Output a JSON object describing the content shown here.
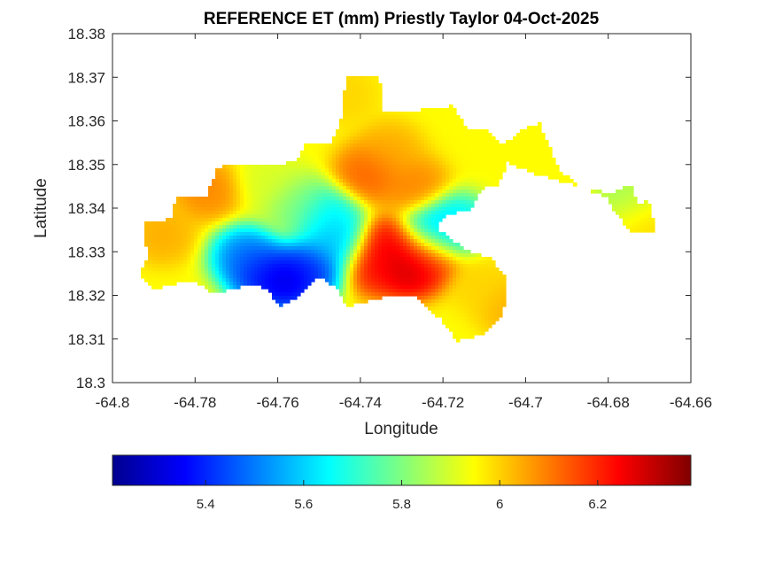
{
  "figure": {
    "title": "REFERENCE ET (mm) Priestly Taylor 04-Oct-2025",
    "xlabel": "Longitude",
    "ylabel": "Latitude"
  },
  "chart_data": {
    "type": "heatmap",
    "colormap": "jet",
    "xlim": [
      -64.8,
      -64.66
    ],
    "ylim": [
      18.3,
      18.38
    ],
    "x_ticks": [
      -64.8,
      -64.78,
      -64.76,
      -64.74,
      -64.72,
      -64.7,
      -64.68,
      -64.66
    ],
    "x_tick_labels": [
      "-64.8",
      "-64.78",
      "-64.76",
      "-64.74",
      "-64.72",
      "-64.7",
      "-64.68",
      "-64.66"
    ],
    "y_ticks": [
      18.3,
      18.31,
      18.32,
      18.33,
      18.34,
      18.35,
      18.36,
      18.37,
      18.38
    ],
    "y_tick_labels": [
      "18.3",
      "18.31",
      "18.32",
      "18.33",
      "18.34",
      "18.35",
      "18.36",
      "18.37",
      "18.38"
    ],
    "colorbar": {
      "orientation": "horizontal",
      "range": [
        5.21,
        6.39
      ],
      "ticks": [
        5.4,
        5.6,
        5.8,
        6.0,
        6.2
      ],
      "tick_labels": [
        "5.4",
        "5.6",
        "5.8",
        "6",
        "6.2"
      ]
    },
    "value_range": [
      5.21,
      6.39
    ],
    "island_outline_lonlat": [
      [
        -64.7925,
        18.3365
      ],
      [
        -64.786,
        18.3375
      ],
      [
        -64.7845,
        18.3425
      ],
      [
        -64.7775,
        18.3425
      ],
      [
        -64.7745,
        18.3495
      ],
      [
        -64.7555,
        18.3505
      ],
      [
        -64.7535,
        18.3545
      ],
      [
        -64.7475,
        18.3545
      ],
      [
        -64.7445,
        18.3605
      ],
      [
        -64.7435,
        18.3705
      ],
      [
        -64.7355,
        18.3705
      ],
      [
        -64.7345,
        18.3625
      ],
      [
        -64.7255,
        18.3625
      ],
      [
        -64.7175,
        18.3635
      ],
      [
        -64.7145,
        18.3585
      ],
      [
        -64.7085,
        18.3575
      ],
      [
        -64.7055,
        18.3545
      ],
      [
        -64.7,
        18.3585
      ],
      [
        -64.6965,
        18.3595
      ],
      [
        -64.6955,
        18.3565
      ],
      [
        -64.6935,
        18.3525
      ],
      [
        -64.6915,
        18.3485
      ],
      [
        -64.6875,
        18.3455
      ],
      [
        -64.6855,
        18.3445
      ],
      [
        -64.6795,
        18.3435
      ],
      [
        -64.6745,
        18.3455
      ],
      [
        -64.6725,
        18.3405
      ],
      [
        -64.6705,
        18.3425
      ],
      [
        -64.6695,
        18.3385
      ],
      [
        -64.6685,
        18.3345
      ],
      [
        -64.6745,
        18.3345
      ],
      [
        -64.6785,
        18.3395
      ],
      [
        -64.6805,
        18.3425
      ],
      [
        -64.6885,
        18.3455
      ],
      [
        -64.6965,
        18.3475
      ],
      [
        -64.7045,
        18.3505
      ],
      [
        -64.7065,
        18.3455
      ],
      [
        -64.7105,
        18.3445
      ],
      [
        -64.7135,
        18.3395
      ],
      [
        -64.7195,
        18.3385
      ],
      [
        -64.7215,
        18.3355
      ],
      [
        -64.7145,
        18.3305
      ],
      [
        -64.7085,
        18.3285
      ],
      [
        -64.7045,
        18.3235
      ],
      [
        -64.7055,
        18.3155
      ],
      [
        -64.7095,
        18.3115
      ],
      [
        -64.7165,
        18.3095
      ],
      [
        -64.7205,
        18.3145
      ],
      [
        -64.7265,
        18.3195
      ],
      [
        -64.7345,
        18.3195
      ],
      [
        -64.7435,
        18.3175
      ],
      [
        -64.7455,
        18.3215
      ],
      [
        -64.7505,
        18.3245
      ],
      [
        -64.7555,
        18.3195
      ],
      [
        -64.7595,
        18.3175
      ],
      [
        -64.7625,
        18.3215
      ],
      [
        -64.7665,
        18.3225
      ],
      [
        -64.7705,
        18.3215
      ],
      [
        -64.7755,
        18.3205
      ],
      [
        -64.7805,
        18.3235
      ],
      [
        -64.7855,
        18.3225
      ],
      [
        -64.7905,
        18.3215
      ],
      [
        -64.7935,
        18.3245
      ],
      [
        -64.7915,
        18.3285
      ],
      [
        -64.7925,
        18.3365
      ]
    ],
    "hotspots_lonlat_value": [
      [
        -64.758,
        18.323,
        5.25
      ],
      [
        -64.764,
        18.325,
        5.32
      ],
      [
        -64.752,
        18.326,
        5.35
      ],
      [
        -64.768,
        18.329,
        5.45
      ],
      [
        -64.746,
        18.332,
        5.55
      ],
      [
        -64.748,
        18.338,
        5.6
      ],
      [
        -64.728,
        18.3265,
        6.36
      ],
      [
        -64.733,
        18.331,
        6.28
      ],
      [
        -64.736,
        18.327,
        6.25
      ],
      [
        -64.724,
        18.329,
        6.2
      ],
      [
        -64.722,
        18.3345,
        5.55
      ],
      [
        -64.717,
        18.3365,
        5.6
      ],
      [
        -64.738,
        18.348,
        6.15
      ],
      [
        -64.727,
        18.345,
        6.1
      ],
      [
        -64.733,
        18.353,
        6.05
      ],
      [
        -64.777,
        18.344,
        6.1
      ],
      [
        -64.788,
        18.334,
        6.05
      ],
      [
        -64.71,
        18.322,
        6.0
      ],
      [
        -64.703,
        18.317,
        6.05
      ],
      [
        -64.672,
        18.338,
        6.0
      ],
      [
        -64.675,
        18.342,
        5.82
      ],
      [
        -64.762,
        18.346,
        5.9
      ],
      [
        -64.755,
        18.341,
        5.78
      ],
      [
        -64.744,
        18.366,
        6.0
      ]
    ],
    "base_value": 5.95
  }
}
